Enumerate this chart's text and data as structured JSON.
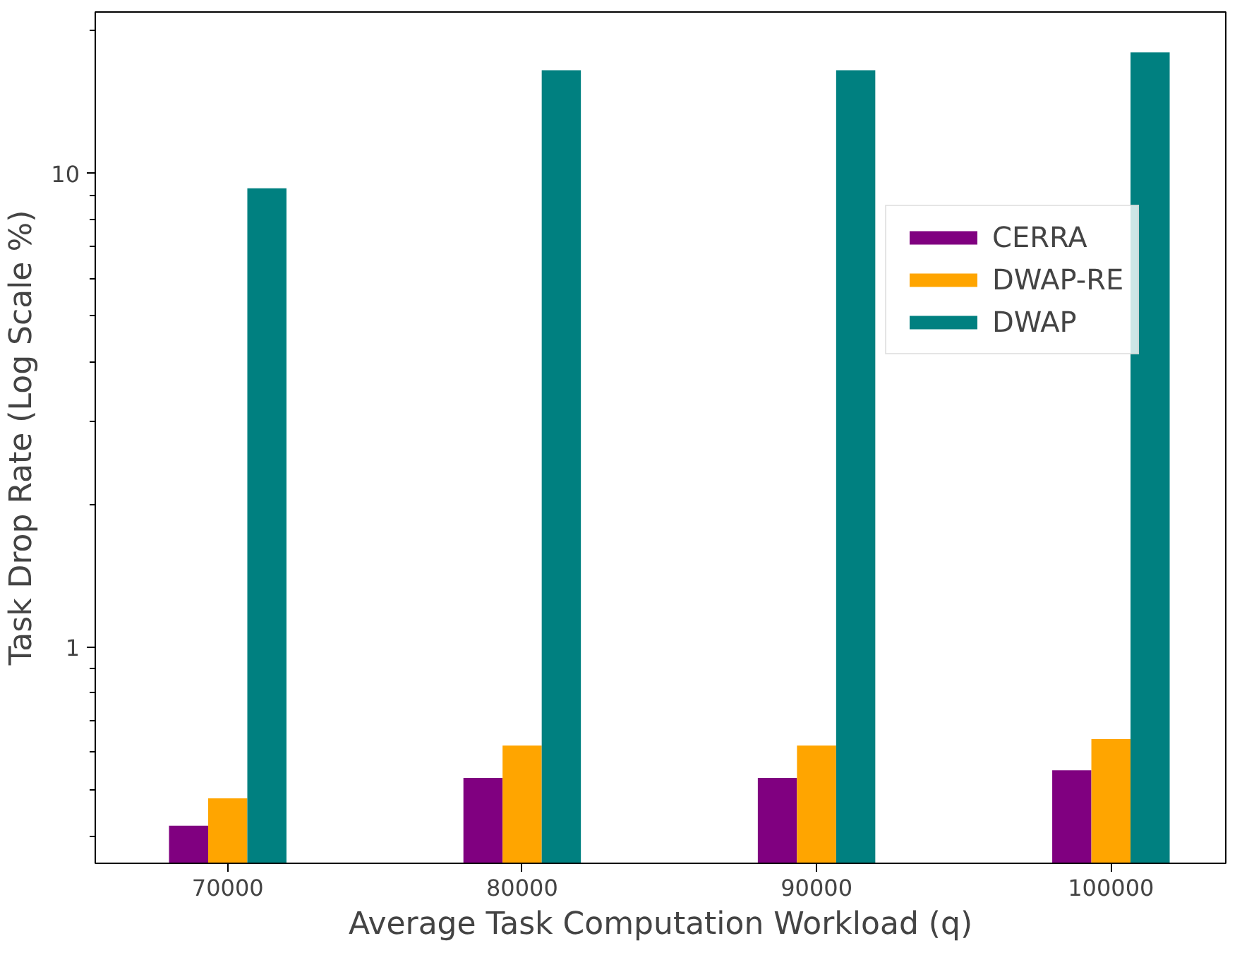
{
  "chart_data": {
    "type": "bar",
    "xlabel": "Average Task Computation Workload (q)",
    "ylabel": "Task Drop Rate (Log Scale %)",
    "categories": [
      "70000",
      "80000",
      "90000",
      "100000"
    ],
    "series": [
      {
        "name": "CERRA",
        "color": "#800080",
        "values": [
          0.42,
          0.53,
          0.53,
          0.55
        ]
      },
      {
        "name": "DWAP-RE",
        "color": "#ffa500",
        "values": [
          0.48,
          0.62,
          0.62,
          0.64
        ]
      },
      {
        "name": "DWAP",
        "color": "#008080",
        "values": [
          9.3,
          16.5,
          16.5,
          18.0
        ]
      }
    ],
    "log": "y",
    "ylim": [
      0.35,
      21.9
    ],
    "yticks": [
      {
        "value": 0.4,
        "label": null
      },
      {
        "value": 0.5,
        "label": null
      },
      {
        "value": 0.6,
        "label": null
      },
      {
        "value": 0.7,
        "label": null
      },
      {
        "value": 0.8,
        "label": null
      },
      {
        "value": 0.9,
        "label": null
      },
      1,
      {
        "value": 2,
        "label": null
      },
      {
        "value": 3,
        "label": null
      },
      {
        "value": 4,
        "label": null
      },
      {
        "value": 5,
        "label": null
      },
      {
        "value": 6,
        "label": null
      },
      {
        "value": 7,
        "label": null
      },
      {
        "value": 8,
        "label": null
      },
      {
        "value": 9,
        "label": null
      },
      10,
      {
        "value": 20,
        "label": null
      }
    ],
    "grid": false,
    "legend": "top right"
  }
}
